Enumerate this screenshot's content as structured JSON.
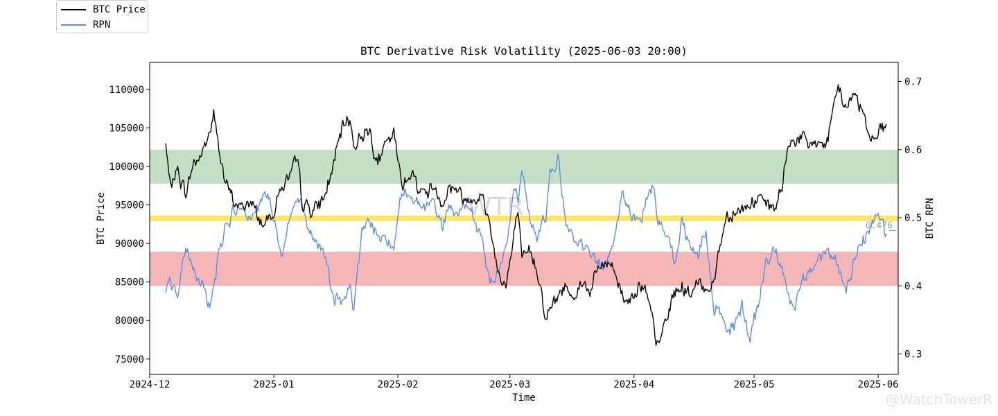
{
  "legend": {
    "items": [
      {
        "label": "BTC Price",
        "color": "#000000"
      },
      {
        "label": "RPN",
        "color": "#5b8fe3"
      }
    ]
  },
  "watermark": {
    "center_text": "WTR",
    "corner_text": "@WatchTowerR"
  },
  "chart_data": {
    "type": "line",
    "title": "BTC Derivative Risk Volatility (2025-06-03 20:00)",
    "xlabel": "Time",
    "ylabel_left": "BTC Price",
    "ylabel_right": "BTC RPN",
    "x_ticks": [
      "2024-12",
      "2025-01",
      "2025-02",
      "2025-03",
      "2025-04",
      "2025-05",
      "2025-06"
    ],
    "y_left_ticks": [
      75000,
      80000,
      85000,
      90000,
      95000,
      100000,
      105000,
      110000
    ],
    "y_right_ticks": [
      "0.3",
      "0.4",
      "0.5",
      "0.6",
      "0.7"
    ],
    "xlim": [
      "2024-12-01",
      "2025-06-06"
    ],
    "ylim_left": [
      73000,
      113500
    ],
    "ylim_right": [
      0.27,
      0.728
    ],
    "bands_right": [
      {
        "from": 0.4,
        "to": 0.45,
        "color": "#f4b6b6"
      },
      {
        "from": 0.495,
        "to": 0.503,
        "color": "#fbe66a"
      },
      {
        "from": 0.55,
        "to": 0.6,
        "color": "#c4dfc4"
      }
    ],
    "last_rpn_label": "0.476",
    "series": [
      {
        "name": "BTC Price",
        "axis": "left",
        "color": "#000000",
        "x": [
          "2024-12-05",
          "2024-12-06",
          "2024-12-08",
          "2024-12-10",
          "2024-12-12",
          "2024-12-14",
          "2024-12-16",
          "2024-12-17",
          "2024-12-18",
          "2024-12-20",
          "2024-12-22",
          "2024-12-24",
          "2024-12-26",
          "2024-12-28",
          "2024-12-30",
          "2025-01-01",
          "2025-01-03",
          "2025-01-05",
          "2025-01-07",
          "2025-01-08",
          "2025-01-10",
          "2025-01-12",
          "2025-01-14",
          "2025-01-16",
          "2025-01-18",
          "2025-01-20",
          "2025-01-21",
          "2025-01-23",
          "2025-01-25",
          "2025-01-27",
          "2025-01-29",
          "2025-01-31",
          "2025-02-02",
          "2025-02-04",
          "2025-02-06",
          "2025-02-08",
          "2025-02-10",
          "2025-02-12",
          "2025-02-14",
          "2025-02-16",
          "2025-02-18",
          "2025-02-20",
          "2025-02-22",
          "2025-02-24",
          "2025-02-26",
          "2025-02-28",
          "2025-03-02",
          "2025-03-03",
          "2025-03-04",
          "2025-03-06",
          "2025-03-08",
          "2025-03-10",
          "2025-03-11",
          "2025-03-13",
          "2025-03-15",
          "2025-03-17",
          "2025-03-19",
          "2025-03-21",
          "2025-03-23",
          "2025-03-25",
          "2025-03-27",
          "2025-03-29",
          "2025-03-31",
          "2025-04-02",
          "2025-04-04",
          "2025-04-06",
          "2025-04-07",
          "2025-04-09",
          "2025-04-11",
          "2025-04-13",
          "2025-04-15",
          "2025-04-17",
          "2025-04-19",
          "2025-04-21",
          "2025-04-22",
          "2025-04-24",
          "2025-04-26",
          "2025-04-28",
          "2025-04-30",
          "2025-05-02",
          "2025-05-04",
          "2025-05-06",
          "2025-05-08",
          "2025-05-09",
          "2025-05-11",
          "2025-05-13",
          "2025-05-15",
          "2025-05-17",
          "2025-05-19",
          "2025-05-21",
          "2025-05-22",
          "2025-05-24",
          "2025-05-26",
          "2025-05-28",
          "2025-05-30",
          "2025-06-01",
          "2025-06-03"
        ],
        "values": [
          103000,
          97500,
          99500,
          96500,
          100500,
          101500,
          104500,
          106500,
          103500,
          97500,
          95500,
          94500,
          95500,
          93500,
          92500,
          94500,
          97500,
          98500,
          100500,
          95500,
          94500,
          94500,
          96500,
          100500,
          104500,
          106500,
          102500,
          104500,
          104500,
          100500,
          102500,
          104000,
          97500,
          99500,
          97500,
          96500,
          97500,
          95500,
          97500,
          97000,
          95500,
          96500,
          96000,
          92500,
          86500,
          84500,
          90500,
          94500,
          87000,
          89000,
          86500,
          80500,
          81500,
          83000,
          84500,
          83500,
          85000,
          84000,
          86500,
          87500,
          87000,
          83500,
          82500,
          85000,
          83500,
          78500,
          76500,
          80000,
          83500,
          84500,
          83500,
          84500,
          84500,
          85000,
          88500,
          93500,
          94500,
          94500,
          95000,
          96000,
          94500,
          94500,
          97000,
          101500,
          104000,
          103500,
          102500,
          103500,
          102500,
          107000,
          110500,
          107500,
          109500,
          107500,
          104000,
          104500,
          105500
        ]
      },
      {
        "name": "RPN",
        "axis": "right",
        "color": "#5b8fe3",
        "x": [
          "2024-12-05",
          "2024-12-06",
          "2024-12-08",
          "2024-12-10",
          "2024-12-12",
          "2024-12-14",
          "2024-12-16",
          "2024-12-17",
          "2024-12-18",
          "2024-12-20",
          "2024-12-22",
          "2024-12-24",
          "2024-12-26",
          "2024-12-28",
          "2024-12-30",
          "2025-01-01",
          "2025-01-03",
          "2025-01-05",
          "2025-01-07",
          "2025-01-08",
          "2025-01-10",
          "2025-01-12",
          "2025-01-14",
          "2025-01-16",
          "2025-01-18",
          "2025-01-20",
          "2025-01-21",
          "2025-01-23",
          "2025-01-25",
          "2025-01-27",
          "2025-01-29",
          "2025-01-31",
          "2025-02-02",
          "2025-02-04",
          "2025-02-06",
          "2025-02-08",
          "2025-02-10",
          "2025-02-12",
          "2025-02-14",
          "2025-02-16",
          "2025-02-18",
          "2025-02-20",
          "2025-02-22",
          "2025-02-24",
          "2025-02-26",
          "2025-02-28",
          "2025-03-02",
          "2025-03-03",
          "2025-03-04",
          "2025-03-06",
          "2025-03-08",
          "2025-03-10",
          "2025-03-11",
          "2025-03-13",
          "2025-03-15",
          "2025-03-17",
          "2025-03-19",
          "2025-03-21",
          "2025-03-23",
          "2025-03-25",
          "2025-03-27",
          "2025-03-29",
          "2025-03-31",
          "2025-04-02",
          "2025-04-04",
          "2025-04-06",
          "2025-04-07",
          "2025-04-09",
          "2025-04-11",
          "2025-04-13",
          "2025-04-15",
          "2025-04-17",
          "2025-04-19",
          "2025-04-21",
          "2025-04-22",
          "2025-04-24",
          "2025-04-26",
          "2025-04-28",
          "2025-04-30",
          "2025-05-02",
          "2025-05-04",
          "2025-05-06",
          "2025-05-08",
          "2025-05-09",
          "2025-05-11",
          "2025-05-13",
          "2025-05-15",
          "2025-05-17",
          "2025-05-19",
          "2025-05-21",
          "2025-05-22",
          "2025-05-24",
          "2025-05-26",
          "2025-05-28",
          "2025-05-30",
          "2025-06-01",
          "2025-06-03"
        ],
        "values": [
          0.39,
          0.4,
          0.39,
          0.45,
          0.42,
          0.41,
          0.37,
          0.39,
          0.44,
          0.49,
          0.51,
          0.52,
          0.5,
          0.51,
          0.54,
          0.5,
          0.43,
          0.5,
          0.53,
          0.52,
          0.48,
          0.46,
          0.44,
          0.38,
          0.37,
          0.4,
          0.37,
          0.48,
          0.5,
          0.48,
          0.47,
          0.45,
          0.54,
          0.53,
          0.52,
          0.51,
          0.52,
          0.49,
          0.51,
          0.5,
          0.52,
          0.5,
          0.47,
          0.4,
          0.42,
          0.47,
          0.54,
          0.52,
          0.57,
          0.5,
          0.47,
          0.51,
          0.57,
          0.59,
          0.5,
          0.46,
          0.46,
          0.45,
          0.44,
          0.43,
          0.46,
          0.55,
          0.51,
          0.49,
          0.52,
          0.55,
          0.5,
          0.48,
          0.44,
          0.49,
          0.46,
          0.45,
          0.48,
          0.36,
          0.37,
          0.34,
          0.34,
          0.37,
          0.32,
          0.37,
          0.44,
          0.45,
          0.43,
          0.4,
          0.37,
          0.4,
          0.42,
          0.44,
          0.45,
          0.44,
          0.43,
          0.4,
          0.44,
          0.46,
          0.48,
          0.5,
          0.476
        ]
      }
    ]
  }
}
